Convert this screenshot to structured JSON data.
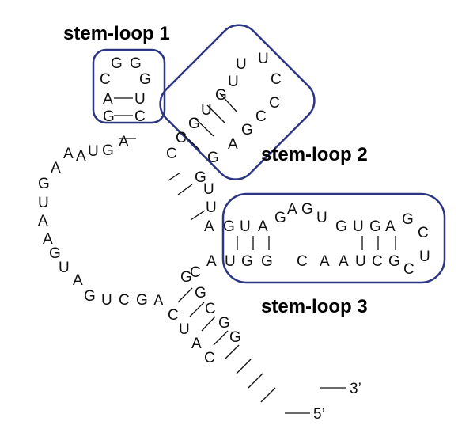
{
  "colors": {
    "box": "#2b3582",
    "text": "#111111"
  },
  "labels": {
    "loop1": "stem-loop 1",
    "loop2": "stem-loop 2",
    "loop3": "stem-loop 3"
  },
  "ends": {
    "three_prime": "3’",
    "five_prime": "5’"
  },
  "sequence": {
    "strand_5prime_to_3prime": [
      "G",
      "A",
      "C",
      "G",
      "C",
      "G",
      "A",
      "C",
      "U",
      "A",
      "C",
      "U",
      "G",
      "A",
      "A",
      "U",
      "G",
      "G",
      "A",
      "G",
      "A",
      "C",
      "G",
      "G",
      "U",
      "C",
      "A",
      "C",
      "G",
      "A",
      "C",
      "U",
      "U",
      "G",
      "U",
      "U",
      "G",
      "A",
      "G",
      "U",
      "A",
      "G",
      "A",
      "G",
      "U",
      "G",
      "U",
      "G",
      "A",
      "G",
      "C",
      "U",
      "C",
      "G",
      "C",
      "U",
      "A",
      "A",
      "C",
      "U",
      "G",
      "A",
      "U",
      "G",
      "G",
      "C",
      "U",
      "U",
      "C",
      "G",
      "C",
      "C",
      "U",
      "G",
      "C"
    ]
  },
  "base_labels": [
    "G",
    "G",
    "C",
    "G",
    "A",
    "U",
    "G",
    "C",
    "U",
    "U",
    "C",
    "U",
    "G",
    "C",
    "C",
    "U",
    "G",
    "G",
    "A",
    "C",
    "G",
    "C",
    "U",
    "U",
    "G",
    "A",
    "G",
    "U",
    "A",
    "G",
    "A",
    "G",
    "U",
    "G",
    "U",
    "G",
    "A",
    "G",
    "C",
    "U",
    "C",
    "G",
    "C",
    "U",
    "A",
    "A",
    "C",
    "G",
    "G",
    "U",
    "A",
    "A",
    "G",
    "U",
    "A",
    "A",
    "A",
    "G",
    "U",
    "A",
    "A",
    "G",
    "U",
    "A",
    "G",
    "U",
    "C",
    "G",
    "A",
    "C",
    "G",
    "G",
    "C",
    "G",
    "C",
    "U",
    "A",
    "C",
    "G"
  ]
}
